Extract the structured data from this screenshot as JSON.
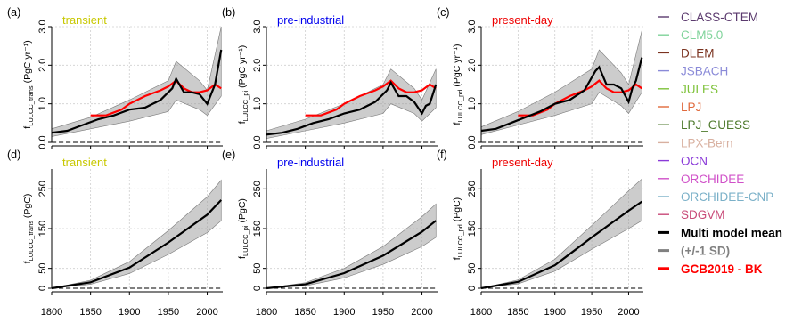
{
  "chart_data": [
    {
      "id": "a",
      "panel_label": "(a)",
      "type": "line",
      "title": "transient",
      "title_color": "#c8c800",
      "ylabel_main": "f",
      "ylabel_sub": "LULCC_trans",
      "ylabel_unit": " (PgC yr⁻¹)",
      "ylim": [
        0,
        3
      ],
      "yticks": [
        0,
        1,
        2,
        3
      ],
      "yticklabels": [
        "0.0",
        "1.0",
        "2.0",
        "3.0"
      ],
      "xlim": [
        1800,
        2020
      ],
      "xticks": [
        1800,
        1850,
        1900,
        1950,
        2000
      ],
      "xticklabels": [
        "1800",
        "1850",
        "1900",
        "1950",
        "2000"
      ],
      "mean": {
        "x": [
          1800,
          1820,
          1840,
          1860,
          1880,
          1900,
          1920,
          1940,
          1955,
          1960,
          1970,
          1980,
          1990,
          2000,
          2005,
          2010,
          2018
        ],
        "y": [
          0.25,
          0.3,
          0.45,
          0.6,
          0.7,
          0.85,
          0.9,
          1.1,
          1.4,
          1.65,
          1.3,
          1.3,
          1.25,
          1.0,
          1.25,
          1.5,
          2.4
        ]
      },
      "sd": {
        "x": [
          1800,
          1850,
          1900,
          1950,
          1960,
          1990,
          2000,
          2018
        ],
        "lower": [
          0.15,
          0.35,
          0.55,
          0.8,
          1.1,
          0.85,
          0.7,
          1.2
        ],
        "upper": [
          0.35,
          0.65,
          1.1,
          1.6,
          2.1,
          1.6,
          1.35,
          3.0
        ]
      },
      "gcb": {
        "x": [
          1850,
          1870,
          1890,
          1900,
          1920,
          1940,
          1950,
          1960,
          1970,
          1980,
          1990,
          2000,
          2010,
          2018
        ],
        "y": [
          0.7,
          0.7,
          0.85,
          1.0,
          1.2,
          1.35,
          1.45,
          1.6,
          1.4,
          1.3,
          1.3,
          1.35,
          1.5,
          1.4
        ]
      }
    },
    {
      "id": "b",
      "panel_label": "(b)",
      "type": "line",
      "title": "pre-industrial",
      "title_color": "#0000ee",
      "ylabel_main": "f",
      "ylabel_sub": "LULCC_pi",
      "ylabel_unit": " (PgC yr⁻¹)",
      "ylim": [
        0,
        3
      ],
      "yticks": [
        0,
        1,
        2,
        3
      ],
      "yticklabels": [
        "0.0",
        "1.0",
        "2.0",
        "3.0"
      ],
      "xlim": [
        1800,
        2020
      ],
      "xticks": [
        1800,
        1850,
        1900,
        1950,
        2000
      ],
      "xticklabels": [
        "1800",
        "1850",
        "1900",
        "1950",
        "2000"
      ],
      "mean": {
        "x": [
          1800,
          1820,
          1840,
          1860,
          1880,
          1900,
          1920,
          1940,
          1955,
          1960,
          1970,
          1980,
          1990,
          2000,
          2005,
          2010,
          2018
        ],
        "y": [
          0.2,
          0.25,
          0.35,
          0.5,
          0.6,
          0.75,
          0.85,
          1.05,
          1.35,
          1.55,
          1.2,
          1.2,
          1.05,
          0.75,
          0.95,
          1.0,
          1.5
        ]
      },
      "sd": {
        "x": [
          1800,
          1850,
          1900,
          1950,
          1960,
          1990,
          2000,
          2018
        ],
        "lower": [
          0.1,
          0.3,
          0.5,
          0.75,
          1.0,
          0.75,
          0.55,
          0.9
        ],
        "upper": [
          0.3,
          0.6,
          1.0,
          1.5,
          1.9,
          1.4,
          1.1,
          1.9
        ]
      },
      "gcb": {
        "x": [
          1850,
          1870,
          1890,
          1900,
          1920,
          1940,
          1950,
          1960,
          1970,
          1980,
          1990,
          2000,
          2010,
          2018
        ],
        "y": [
          0.7,
          0.7,
          0.85,
          1.0,
          1.2,
          1.35,
          1.45,
          1.6,
          1.4,
          1.3,
          1.3,
          1.35,
          1.5,
          1.4
        ]
      }
    },
    {
      "id": "c",
      "panel_label": "(c)",
      "type": "line",
      "title": "present-day",
      "title_color": "#ee0000",
      "ylabel_main": "f",
      "ylabel_sub": "LULCC_pd",
      "ylabel_unit": " (PgC yr⁻¹)",
      "ylim": [
        0,
        3
      ],
      "yticks": [
        0,
        1,
        2,
        3
      ],
      "yticklabels": [
        "0.0",
        "1.0",
        "2.0",
        "3.0"
      ],
      "xlim": [
        1800,
        2020
      ],
      "xticks": [
        1800,
        1850,
        1900,
        1950,
        2000
      ],
      "xticklabels": [
        "1800",
        "1850",
        "1900",
        "1950",
        "2000"
      ],
      "mean": {
        "x": [
          1800,
          1820,
          1840,
          1860,
          1880,
          1900,
          1920,
          1940,
          1955,
          1960,
          1970,
          1980,
          1990,
          2000,
          2005,
          2010,
          2018
        ],
        "y": [
          0.3,
          0.35,
          0.5,
          0.65,
          0.8,
          1.0,
          1.1,
          1.35,
          1.85,
          1.95,
          1.5,
          1.5,
          1.4,
          1.05,
          1.4,
          1.6,
          2.2
        ]
      },
      "sd": {
        "x": [
          1800,
          1850,
          1900,
          1950,
          1960,
          1990,
          2000,
          2018
        ],
        "lower": [
          0.2,
          0.45,
          0.7,
          1.0,
          1.3,
          0.95,
          0.75,
          1.3
        ],
        "upper": [
          0.4,
          0.8,
          1.3,
          1.9,
          2.4,
          1.8,
          1.5,
          2.9
        ]
      },
      "gcb": {
        "x": [
          1850,
          1870,
          1890,
          1900,
          1920,
          1940,
          1950,
          1960,
          1970,
          1980,
          1990,
          2000,
          2010,
          2018
        ],
        "y": [
          0.7,
          0.7,
          0.85,
          1.0,
          1.2,
          1.35,
          1.45,
          1.6,
          1.4,
          1.3,
          1.3,
          1.35,
          1.5,
          1.4
        ]
      }
    },
    {
      "id": "d",
      "panel_label": "(d)",
      "type": "line",
      "title": "transient",
      "title_color": "#c8c800",
      "ylabel_main": "f",
      "ylabel_sub": "LULCC_trans",
      "ylabel_unit": " (PgC)",
      "ylim": [
        0,
        300
      ],
      "yticks": [
        0,
        50,
        150,
        250
      ],
      "yticklabels": [
        "0",
        "50",
        "150",
        "250"
      ],
      "xlim": [
        1800,
        2020
      ],
      "xticks": [
        1800,
        1850,
        1900,
        1950,
        2000
      ],
      "xticklabels": [
        "1800",
        "1850",
        "1900",
        "1950",
        "2000"
      ],
      "mean": {
        "x": [
          1800,
          1850,
          1900,
          1950,
          2000,
          2018
        ],
        "y": [
          0,
          15,
          52,
          115,
          185,
          222
        ]
      },
      "sd": {
        "x": [
          1800,
          1850,
          1900,
          1950,
          2000,
          2018
        ],
        "lower": [
          0,
          10,
          37,
          85,
          140,
          170
        ],
        "upper": [
          0,
          20,
          67,
          145,
          230,
          272
        ]
      }
    },
    {
      "id": "e",
      "panel_label": "(e)",
      "type": "line",
      "title": "pre-industrial",
      "title_color": "#0000ee",
      "ylabel_main": "f",
      "ylabel_sub": "LULCC_pi",
      "ylabel_unit": " (PgC)",
      "ylim": [
        0,
        300
      ],
      "yticks": [
        0,
        50,
        150,
        250
      ],
      "yticklabels": [
        "0",
        "50",
        "150",
        "250"
      ],
      "xlim": [
        1800,
        2020
      ],
      "xticks": [
        1800,
        1850,
        1900,
        1950,
        2000
      ],
      "xticklabels": [
        "1800",
        "1850",
        "1900",
        "1950",
        "2000"
      ],
      "mean": {
        "x": [
          1800,
          1850,
          1900,
          1950,
          2000,
          2018
        ],
        "y": [
          0,
          10,
          38,
          82,
          142,
          170
        ]
      },
      "sd": {
        "x": [
          1800,
          1850,
          1900,
          1950,
          2000,
          2018
        ],
        "lower": [
          0,
          6,
          26,
          60,
          105,
          128
        ],
        "upper": [
          0,
          14,
          50,
          105,
          180,
          212
        ]
      }
    },
    {
      "id": "f",
      "panel_label": "(f)",
      "type": "line",
      "title": "present-day",
      "title_color": "#ee0000",
      "ylabel_main": "f",
      "ylabel_sub": "LULCC_pd",
      "ylabel_unit": " (PgC)",
      "ylim": [
        0,
        300
      ],
      "yticks": [
        0,
        50,
        150,
        250
      ],
      "yticklabels": [
        "0",
        "50",
        "150",
        "250"
      ],
      "xlim": [
        1800,
        2020
      ],
      "xticks": [
        1800,
        1850,
        1900,
        1950,
        2000
      ],
      "xticklabels": [
        "1800",
        "1850",
        "1900",
        "1950",
        "2000"
      ],
      "mean": {
        "x": [
          1800,
          1850,
          1900,
          1950,
          2000,
          2018
        ],
        "y": [
          0,
          16,
          58,
          128,
          195,
          218
        ]
      },
      "sd": {
        "x": [
          1800,
          1850,
          1900,
          1950,
          2000,
          2018
        ],
        "lower": [
          0,
          11,
          43,
          98,
          150,
          170
        ],
        "upper": [
          0,
          21,
          73,
          158,
          245,
          275
        ]
      }
    }
  ],
  "legend": [
    {
      "name": "CLASS-CTEM",
      "color": "#5b3a6e",
      "bold": false
    },
    {
      "name": "CLM5.0",
      "color": "#7fd39a",
      "bold": false
    },
    {
      "name": "DLEM",
      "color": "#7b3320",
      "bold": false
    },
    {
      "name": "JSBACH",
      "color": "#8a8ad8",
      "bold": false
    },
    {
      "name": "JULES",
      "color": "#7ec23a",
      "bold": false
    },
    {
      "name": "LPJ",
      "color": "#e06a3c",
      "bold": false
    },
    {
      "name": "LPJ_GUESS",
      "color": "#4e7a2c",
      "bold": false
    },
    {
      "name": "LPX-Bern",
      "color": "#d8b0a0",
      "bold": false
    },
    {
      "name": "OCN",
      "color": "#8a3ad8",
      "bold": false
    },
    {
      "name": "ORCHIDEE",
      "color": "#d050c8",
      "bold": false
    },
    {
      "name": "ORCHIDEE-CNP",
      "color": "#7ab0c8",
      "bold": false
    },
    {
      "name": "SDGVM",
      "color": "#c84a78",
      "bold": false
    },
    {
      "name": "Multi model mean",
      "color": "#000000",
      "bold": true
    },
    {
      "name": "(+/-1 SD)",
      "color": "#808080",
      "bold": true
    },
    {
      "name": "GCB2019 - BK",
      "color": "#ff0000",
      "bold": true
    }
  ]
}
